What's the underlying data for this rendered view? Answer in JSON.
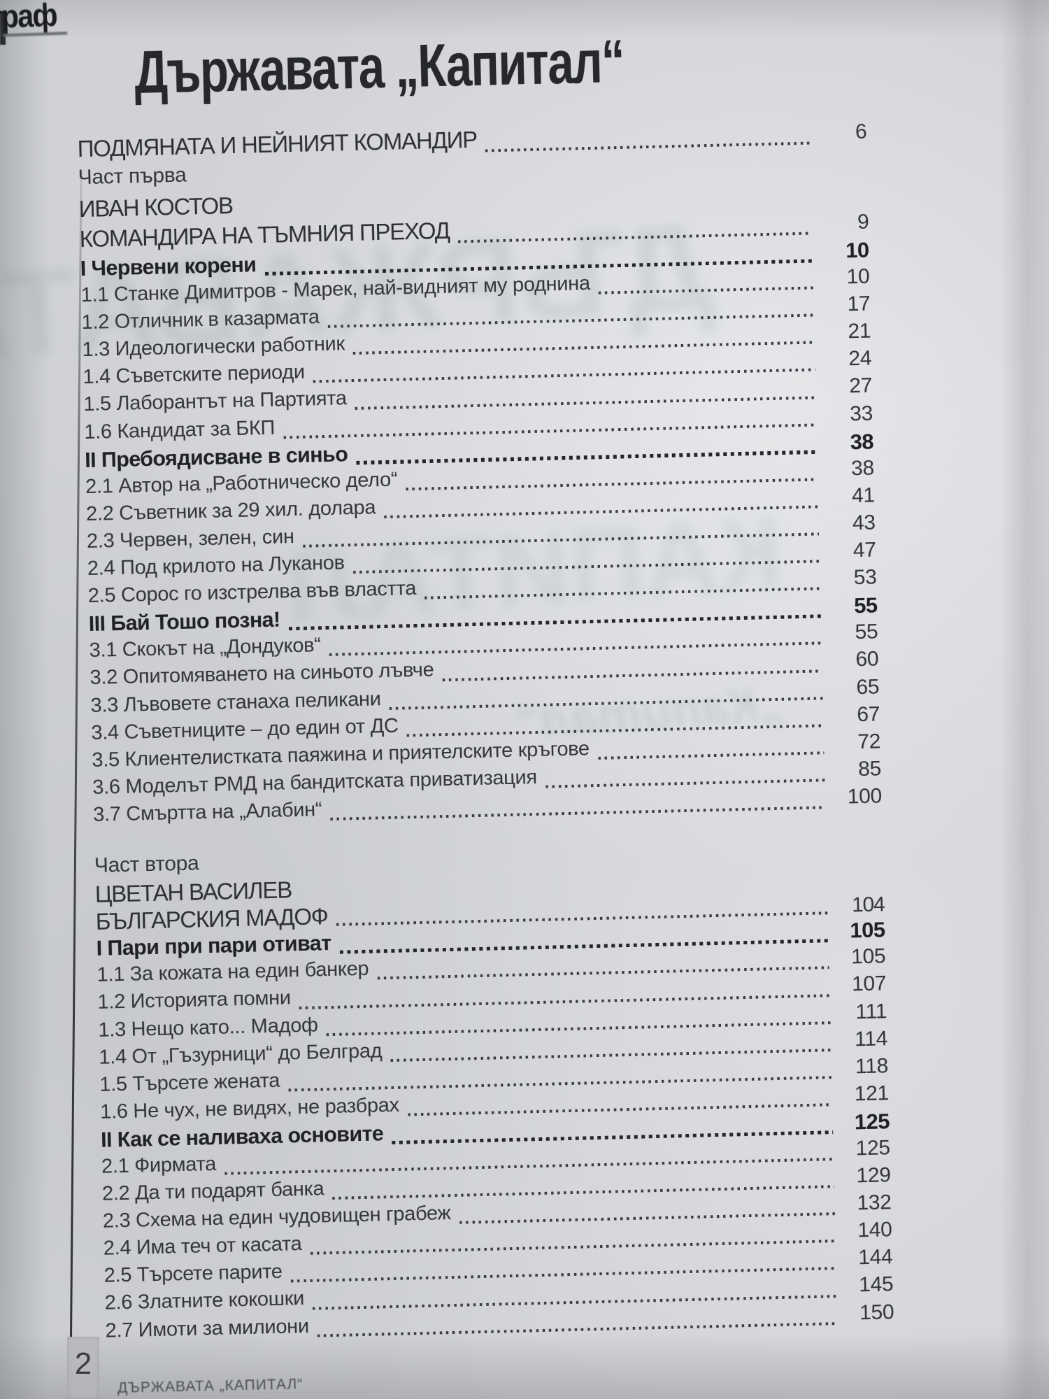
{
  "photo": {
    "corner_logo_fragment": "еграф",
    "paper_color": "#d0d2d6",
    "ink_color": "#33353a"
  },
  "header": {
    "title": "Държавата „Капитал“"
  },
  "toc": {
    "blocks": [
      {
        "name": "part-1",
        "rows": [
          {
            "label": "ПОДМЯНАТА И НЕЙНИЯТ КОМАНДИР",
            "page": "6",
            "style": "caps",
            "leader": true
          },
          {
            "label": "Част първа",
            "page": "",
            "style": "plain",
            "leader": false
          },
          {
            "label": "ИВАН КОСТОВ",
            "page": "",
            "style": "caps",
            "leader": false
          },
          {
            "label": "КОМАНДИРА НА ТЪМНИЯ ПРЕХОД",
            "page": "9",
            "style": "caps",
            "leader": true
          },
          {
            "label": "I Червени корени",
            "page": "10",
            "style": "header",
            "leader": true
          },
          {
            "label": "1.1 Станке Димитров - Марек, най-видният му роднина",
            "page": "10",
            "style": "item",
            "leader": true
          },
          {
            "label": "1.2 Отличник в казармата",
            "page": "17",
            "style": "item",
            "leader": true
          },
          {
            "label": "1.3 Идеологически работник",
            "page": "21",
            "style": "item",
            "leader": true
          },
          {
            "label": "1.4 Съветските периоди",
            "page": "24",
            "style": "item",
            "leader": true
          },
          {
            "label": "1.5 Лаборантът на Партията",
            "page": "27",
            "style": "item",
            "leader": true
          },
          {
            "label": "1.6 Кандидат за БКП",
            "page": "33",
            "style": "item",
            "leader": true
          },
          {
            "label": "II Пребоядисване в синьо",
            "page": "38",
            "style": "header",
            "leader": true
          },
          {
            "label": "2.1 Автор на „Работническо дело“",
            "page": "38",
            "style": "item",
            "leader": true
          },
          {
            "label": "2.2 Съветник за 29 хил. долара",
            "page": "41",
            "style": "item",
            "leader": true
          },
          {
            "label": "2.3 Червен, зелен, син",
            "page": "43",
            "style": "item",
            "leader": true
          },
          {
            "label": "2.4 Под крилото на Луканов",
            "page": "47",
            "style": "item",
            "leader": true
          },
          {
            "label": "2.5 Сорос го изстрелва във властта",
            "page": "53",
            "style": "item",
            "leader": true
          },
          {
            "label": "III Бай Тошо позна!",
            "page": "55",
            "style": "header",
            "leader": true
          },
          {
            "label": "3.1 Скокът на „Дондуков“",
            "page": "55",
            "style": "item",
            "leader": true
          },
          {
            "label": "3.2 Опитомяването на синьото лъвче",
            "page": "60",
            "style": "item",
            "leader": true
          },
          {
            "label": "3.3 Лъвовете станаха пеликани",
            "page": "65",
            "style": "item",
            "leader": true
          },
          {
            "label": "3.4 Съветниците – до един от ДС",
            "page": "67",
            "style": "item",
            "leader": true
          },
          {
            "label": "3.5 Клиентелистката паяжина и приятелските кръгове",
            "page": "72",
            "style": "item",
            "leader": true
          },
          {
            "label": "3.6 Моделът РМД на бандитската приватизация",
            "page": "85",
            "style": "item",
            "leader": true
          },
          {
            "label": "3.7 Смъртта на „Алабин“",
            "page": "100",
            "style": "item",
            "leader": true
          }
        ]
      },
      {
        "name": "part-2",
        "rows": [
          {
            "label": "Част втора",
            "page": "",
            "style": "plain",
            "leader": false
          },
          {
            "label": "ЦВЕТАН ВАСИЛЕВ",
            "page": "",
            "style": "caps",
            "leader": false
          },
          {
            "label": "БЪЛГАРСКИЯ МАДОФ",
            "page": "104",
            "style": "caps",
            "leader": true
          },
          {
            "label": "I Пари при пари отиват",
            "page": "105",
            "style": "header",
            "leader": true
          },
          {
            "label": "1.1 За кожата на един банкер",
            "page": "105",
            "style": "item",
            "leader": true
          },
          {
            "label": "1.2 Историята помни",
            "page": "107",
            "style": "item",
            "leader": true
          },
          {
            "label": "1.3 Нещо като... Мадоф",
            "page": "111",
            "style": "item",
            "leader": true
          },
          {
            "label": "1.4 От „Гъзурници“ до Белград",
            "page": "114",
            "style": "item",
            "leader": true
          },
          {
            "label": "1.5 Търсете жената",
            "page": "118",
            "style": "item",
            "leader": true
          },
          {
            "label": "1.6 Не чух, не видях, не разбрах",
            "page": "121",
            "style": "item",
            "leader": true
          },
          {
            "label": "II Как се наливаха основите",
            "page": "125",
            "style": "header",
            "leader": true
          },
          {
            "label": "2.1 Фирмата",
            "page": "125",
            "style": "item",
            "leader": true
          },
          {
            "label": "2.2 Да ти подарят банка",
            "page": "129",
            "style": "item",
            "leader": true
          },
          {
            "label": "2.3 Схема на един чудовищен грабеж",
            "page": "132",
            "style": "item",
            "leader": true
          },
          {
            "label": "2.4 Има теч от касата",
            "page": "140",
            "style": "item",
            "leader": true
          },
          {
            "label": "2.5 Търсете парите",
            "page": "144",
            "style": "item",
            "leader": true
          },
          {
            "label": "2.6 Златните кокошки",
            "page": "145",
            "style": "item",
            "leader": true
          },
          {
            "label": "2.7 Имоти за милиони",
            "page": "150",
            "style": "item",
            "leader": true
          }
        ]
      }
    ]
  },
  "footer": {
    "page_number": "2",
    "book_title": "ДЪРЖАВАТА „КАПИТАЛ“"
  },
  "ghost": {
    "word1": "ДЪРЖАВАТА",
    "word2": "КАПИТАЛ",
    "word3": "„Капитал“"
  }
}
